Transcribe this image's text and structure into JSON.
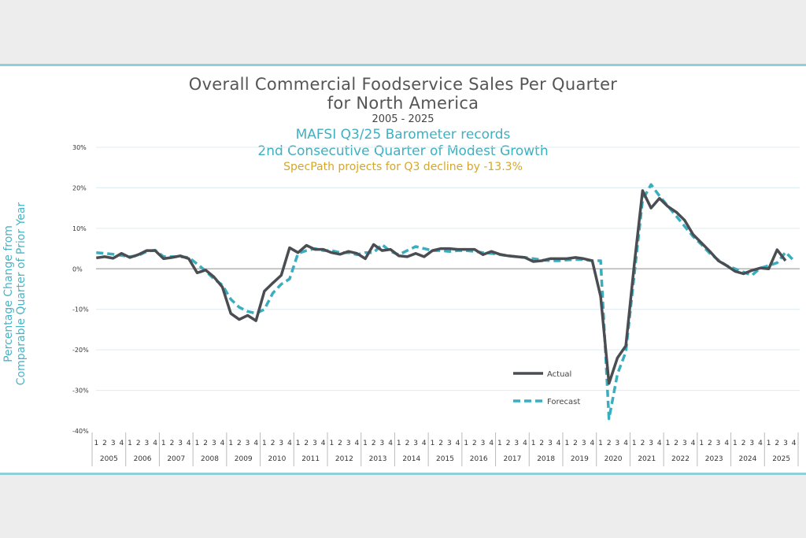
{
  "chart_data": {
    "type": "line",
    "title": "Overall Commercial Foodservice Sales Per Quarter",
    "title_line2": "for North America",
    "subtitle": "2005 - 2025",
    "headline1": "MAFSI Q3/25 Barometer records",
    "headline2": "2nd Consecutive Quarter of Modest Growth",
    "note": "SpecPath projects for Q3 decline by -13.3%",
    "ylabel_line1": "Percentage Change from",
    "ylabel_line2": "Comparable Quarter of Prior Year",
    "ylim": [
      -40,
      30
    ],
    "yticks": [
      "30%",
      "20%",
      "10%",
      "0%",
      "-10%",
      "-20%",
      "-30%",
      "-40%"
    ],
    "ytick_values": [
      30,
      20,
      10,
      0,
      -10,
      -20,
      -30,
      -40
    ],
    "quarter_labels": [
      "1",
      "2",
      "3",
      "4"
    ],
    "years": [
      "2005",
      "2006",
      "2007",
      "2008",
      "2009",
      "2010",
      "2011",
      "2012",
      "2013",
      "2014",
      "2015",
      "2016",
      "2017",
      "2018",
      "2019",
      "2020",
      "2021",
      "2022",
      "2023",
      "2024",
      "2025"
    ],
    "grid": true,
    "legend_position": "bottom-center",
    "colors": {
      "actual": "#4a4d52",
      "forecast": "#3aaebf",
      "grid": "#dcecf3",
      "zero": "#b5b5b5"
    },
    "series": [
      {
        "name": "Actual",
        "style": "solid",
        "values": [
          2.7,
          3.0,
          2.6,
          3.8,
          2.8,
          3.5,
          4.5,
          4.5,
          2.5,
          2.8,
          3.2,
          2.5,
          -1.0,
          -0.3,
          -2.0,
          -4.5,
          -11.0,
          -12.5,
          -11.5,
          -12.8,
          -5.5,
          -3.5,
          -1.6,
          5.2,
          4.0,
          5.8,
          4.8,
          4.8,
          4.0,
          3.6,
          4.3,
          3.8,
          2.5,
          6.0,
          4.5,
          4.8,
          3.2,
          3.0,
          3.8,
          3.0,
          4.5,
          5.0,
          5.0,
          4.8,
          4.8,
          4.8,
          3.5,
          4.3,
          3.6,
          3.2,
          3.0,
          2.8,
          1.8,
          2.0,
          2.5,
          2.5,
          2.5,
          2.8,
          2.5,
          2.0,
          -6.8,
          -28.3,
          -22.0,
          -19.0,
          1.0,
          19.3,
          15.0,
          17.4,
          15.4,
          14.0,
          12.0,
          8.5,
          6.4,
          4.3,
          2.0,
          0.8,
          -0.6,
          -1.2,
          -0.4,
          0.2,
          0.0,
          4.7,
          2.0
        ]
      },
      {
        "name": "Forecast",
        "style": "dashed",
        "values": [
          4.0,
          3.8,
          3.6,
          3.3,
          3.0,
          3.3,
          4.3,
          4.6,
          3.0,
          3.0,
          3.0,
          2.8,
          1.2,
          -0.5,
          -2.5,
          -4.0,
          -7.5,
          -9.5,
          -10.5,
          -11.0,
          -10.0,
          -6.0,
          -3.8,
          -2.5,
          3.8,
          4.5,
          5.0,
          4.5,
          4.5,
          4.0,
          4.0,
          3.5,
          4.0,
          4.0,
          6.0,
          4.3,
          3.5,
          4.5,
          5.5,
          5.0,
          4.5,
          4.5,
          4.3,
          4.5,
          4.5,
          4.3,
          4.0,
          3.8,
          3.5,
          3.2,
          3.0,
          2.8,
          2.5,
          2.2,
          2.0,
          2.0,
          2.2,
          2.3,
          2.3,
          2.0,
          2.0,
          -37.0,
          -26.0,
          -20.5,
          -1.5,
          17.0,
          20.8,
          18.0,
          15.5,
          13.0,
          10.5,
          8.0,
          6.0,
          3.8,
          2.2,
          0.8,
          0.0,
          -0.8,
          -1.6,
          0.2,
          0.8,
          1.5,
          4.1,
          2.0
        ]
      }
    ]
  }
}
